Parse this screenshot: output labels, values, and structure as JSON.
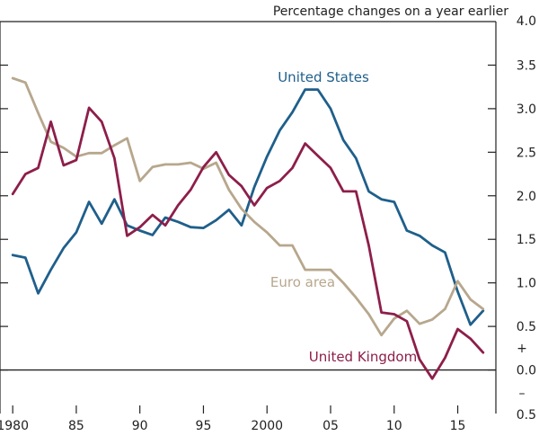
{
  "chart_data": {
    "type": "line",
    "title": "",
    "unit_note": "Percentage changes on a year earlier",
    "xlabel": "",
    "ylabel": "",
    "xlim": [
      1979,
      2018
    ],
    "ylim": [
      -0.5,
      4.0
    ],
    "x_ticks": [
      1980,
      1985,
      1990,
      1995,
      2000,
      2005,
      2010,
      2015
    ],
    "x_tick_labels": [
      "1980",
      "85",
      "90",
      "95",
      "2000",
      "05",
      "10",
      "15"
    ],
    "y_ticks": [
      -0.5,
      0.0,
      0.5,
      1.0,
      1.5,
      2.0,
      2.5,
      3.0,
      3.5,
      4.0
    ],
    "y_tick_labels": [
      "0.5",
      "0.0",
      "0.5",
      "1.0",
      "1.5",
      "2.0",
      "2.5",
      "3.0",
      "3.5",
      "4.0"
    ],
    "sign_markers": {
      "plus": "+",
      "minus": "–"
    },
    "grid": false,
    "zero_line": true,
    "series": [
      {
        "name": "United States",
        "color": "#1f5f8b",
        "x": [
          1980,
          1981,
          1982,
          1983,
          1984,
          1985,
          1986,
          1987,
          1988,
          1989,
          1990,
          1991,
          1992,
          1993,
          1994,
          1995,
          1996,
          1997,
          1998,
          1999,
          2000,
          2001,
          2002,
          2003,
          2004,
          2005,
          2006,
          2007,
          2008,
          2009,
          2010,
          2011,
          2012,
          2013,
          2014,
          2015,
          2016,
          2017
        ],
        "values": [
          1.32,
          1.29,
          0.88,
          1.15,
          1.4,
          1.58,
          1.93,
          1.68,
          1.96,
          1.66,
          1.6,
          1.55,
          1.75,
          1.7,
          1.64,
          1.63,
          1.72,
          1.84,
          1.66,
          2.1,
          2.45,
          2.75,
          2.96,
          3.22,
          3.22,
          3.0,
          2.64,
          2.43,
          2.05,
          1.96,
          1.93,
          1.6,
          1.54,
          1.43,
          1.35,
          0.9,
          0.52,
          0.68
        ]
      },
      {
        "name": "Euro area",
        "color": "#b7a78d",
        "x": [
          1980,
          1981,
          1982,
          1983,
          1984,
          1985,
          1986,
          1987,
          1988,
          1989,
          1990,
          1991,
          1992,
          1993,
          1994,
          1995,
          1996,
          1997,
          1998,
          1999,
          2000,
          2001,
          2002,
          2003,
          2004,
          2005,
          2006,
          2007,
          2008,
          2009,
          2010,
          2011,
          2012,
          2013,
          2014,
          2015,
          2016,
          2017
        ],
        "values": [
          3.35,
          3.3,
          2.95,
          2.62,
          2.55,
          2.45,
          2.49,
          2.49,
          2.58,
          2.66,
          2.17,
          2.33,
          2.36,
          2.36,
          2.38,
          2.31,
          2.38,
          2.07,
          1.85,
          1.7,
          1.58,
          1.43,
          1.43,
          1.15,
          1.15,
          1.15,
          1.0,
          0.83,
          0.64,
          0.4,
          0.59,
          0.68,
          0.53,
          0.58,
          0.7,
          1.02,
          0.81,
          0.7
        ]
      },
      {
        "name": "United Kingdom",
        "color": "#8d1e4a",
        "x": [
          1980,
          1981,
          1982,
          1983,
          1984,
          1985,
          1986,
          1987,
          1988,
          1989,
          1990,
          1991,
          1992,
          1993,
          1994,
          1995,
          1996,
          1997,
          1998,
          1999,
          2000,
          2001,
          2002,
          2003,
          2004,
          2005,
          2006,
          2007,
          2008,
          2009,
          2010,
          2011,
          2012,
          2013,
          2014,
          2015,
          2016,
          2017
        ],
        "values": [
          2.02,
          2.25,
          2.32,
          2.85,
          2.35,
          2.41,
          3.01,
          2.85,
          2.43,
          1.54,
          1.64,
          1.78,
          1.66,
          1.89,
          2.07,
          2.33,
          2.5,
          2.24,
          2.11,
          1.89,
          2.09,
          2.17,
          2.32,
          2.6,
          2.46,
          2.32,
          2.05,
          2.05,
          1.43,
          0.66,
          0.64,
          0.56,
          0.12,
          -0.1,
          0.14,
          0.47,
          0.36,
          0.2
        ]
      }
    ]
  }
}
